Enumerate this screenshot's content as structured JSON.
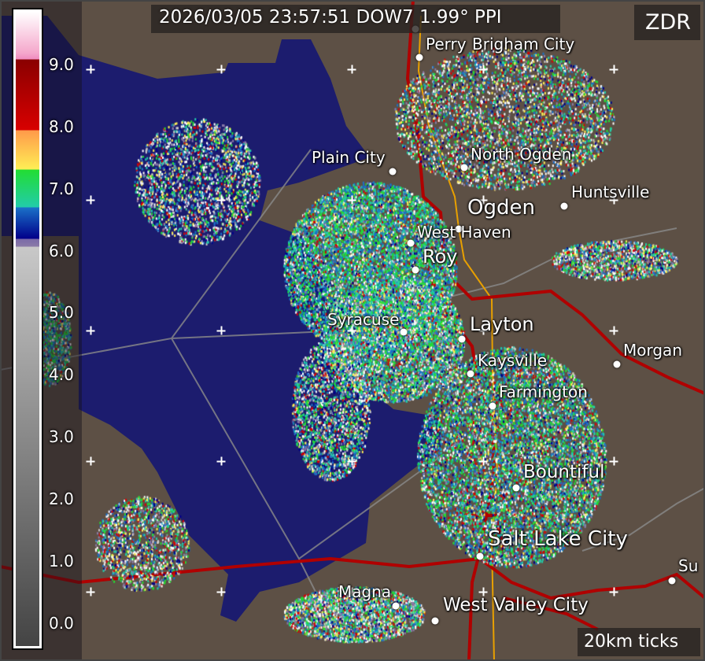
{
  "header": {
    "title": "2026/03/05 23:57:51 DOW7 1.99° PPI",
    "product": "ZDR"
  },
  "scale_note": "20km ticks",
  "colorbar": {
    "ticks": [
      "9.0",
      "8.0",
      "7.0",
      "6.0",
      "5.0",
      "4.0",
      "3.0",
      "2.0",
      "1.0",
      "0.0"
    ],
    "colors": {
      "pink": "#f08cc0",
      "darkred": "#8a0000",
      "red": "#d80000",
      "orange": "#ff9a4a",
      "yellow": "#ffee55",
      "green": "#22dd33",
      "teal": "#22ccaa",
      "blue": "#1a70c8",
      "navy": "#00008a",
      "purple": "#7a6aa8",
      "gray": "#c8c8c8"
    }
  },
  "colors": {
    "land": "#5d5045",
    "lake": "#1c1c6e",
    "highway": "#c00000",
    "road": "#e8a000",
    "boundary": "#8a8a8a"
  },
  "cities": [
    {
      "name": "Brigham City",
      "faint": true
    },
    {
      "name": "Perry"
    },
    {
      "name": "Plain City"
    },
    {
      "name": "North Ogden"
    },
    {
      "name": "Huntsville"
    },
    {
      "name": "Ogden"
    },
    {
      "name": "West Haven"
    },
    {
      "name": "Roy"
    },
    {
      "name": "Syracuse"
    },
    {
      "name": "Layton"
    },
    {
      "name": "Kaysville"
    },
    {
      "name": "Morgan"
    },
    {
      "name": "Farmington"
    },
    {
      "name": "Bountiful"
    },
    {
      "name": "Salt Lake City"
    },
    {
      "name": "Magna"
    },
    {
      "name": "West Valley City"
    },
    {
      "name": "Su"
    }
  ]
}
